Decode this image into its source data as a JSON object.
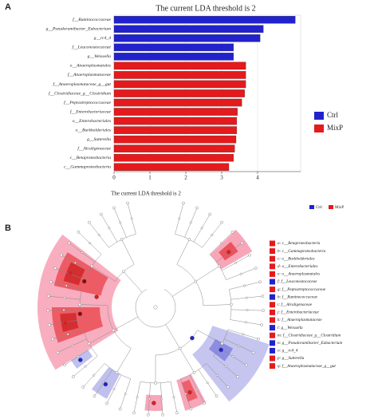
{
  "chart_data": {
    "type": "bar",
    "orientation": "horizontal",
    "title": "The current LDA threshold is 2",
    "xlabel": "The current LDA threshold is 2",
    "categories": [
      "f__Ruminococcaceae",
      "g__Pseudoramibacter_Eubacterium",
      "g__rc4_4",
      "f__Leuconostocaceae",
      "g__Weissella",
      "o__Anaeroplasmatales",
      "f__Anaeroplasmataceae",
      "f__Anaeroplasmataceae_g__gut",
      "f__Clostridiaceae_g__Clostridium",
      "f__Peptostreptococcaceae",
      "f__Enterobacteriaceae",
      "o__Enterobacteriales",
      "o__Burkholderiales",
      "g__Sutterella",
      "f__Alcaligenaceae",
      "c__Betaproteobacteria",
      "c__Gammaproteobacteria"
    ],
    "series": [
      {
        "name": "Ctrl",
        "color": "#2222cc",
        "values": [
          5.05,
          4.16,
          4.07,
          3.33,
          3.33,
          null,
          null,
          null,
          null,
          null,
          null,
          null,
          null,
          null,
          null,
          null,
          null
        ]
      },
      {
        "name": "MixP",
        "color": "#e41a1c",
        "values": [
          null,
          null,
          null,
          null,
          null,
          3.67,
          3.67,
          3.67,
          3.64,
          3.56,
          3.44,
          3.42,
          3.42,
          3.4,
          3.36,
          3.33,
          3.2
        ]
      }
    ],
    "xlim": [
      0,
      5.2
    ],
    "xticks": [
      0,
      1,
      2,
      3,
      4
    ],
    "legend": "right"
  },
  "panels": {
    "a": "A",
    "b": "B"
  },
  "cladogram": {
    "legend": [
      {
        "label": "a: c__Betaproteobacteria",
        "color": "#e41a1c"
      },
      {
        "label": "b: c__Gammaproteobacteria",
        "color": "#e41a1c"
      },
      {
        "label": "c: o__Burkholderiales",
        "color": "#e41a1c"
      },
      {
        "label": "d: o__Enterobacteriales",
        "color": "#e41a1c"
      },
      {
        "label": "e: o__Anaeroplasmatales",
        "color": "#e41a1c"
      },
      {
        "label": "f: f__Leuconostocaceae",
        "color": "#2222cc"
      },
      {
        "label": "g: f__Peptostreptococcaceae",
        "color": "#e41a1c"
      },
      {
        "label": "h: f__Ruminococcaceae",
        "color": "#2222cc"
      },
      {
        "label": "i: f__Alcaligenaceae",
        "color": "#e41a1c"
      },
      {
        "label": "j: f__Enterobacteriaceae",
        "color": "#e41a1c"
      },
      {
        "label": "k: f__Anaeroplasmataceae",
        "color": "#e41a1c"
      },
      {
        "label": "l: g__Weissella",
        "color": "#2222cc"
      },
      {
        "label": "m: f__Clostridiaceae_g__Clostridium",
        "color": "#e41a1c"
      },
      {
        "label": "n: g__Pseudoramibacter_Eubacterium",
        "color": "#2222cc"
      },
      {
        "label": "o: g__rc4_4",
        "color": "#2222cc"
      },
      {
        "label": "p: g__Sutterella",
        "color": "#e41a1c"
      },
      {
        "label": "q: f__Anaeroplasmataceae_g__gut",
        "color": "#e41a1c"
      }
    ]
  }
}
